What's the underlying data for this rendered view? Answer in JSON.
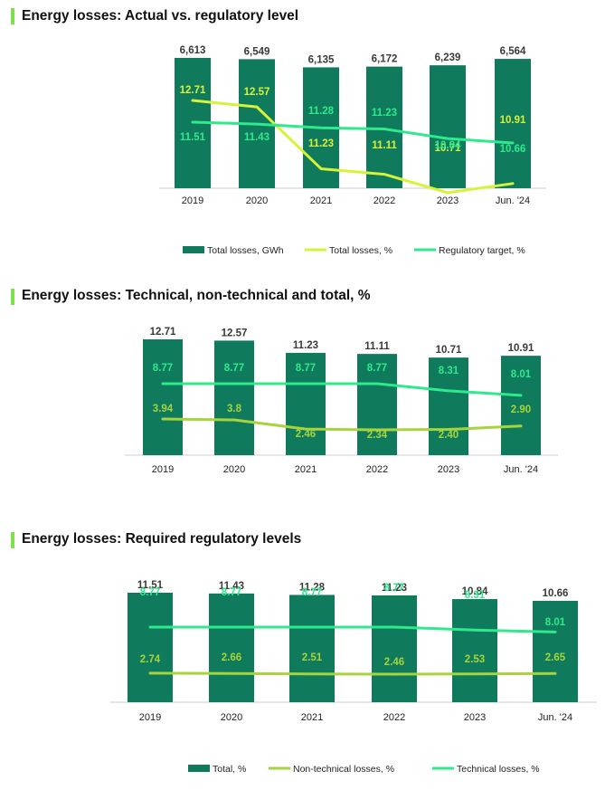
{
  "colors": {
    "bar": "#0f7a5c",
    "lime": "#d8f23a",
    "mint": "#2eea8c",
    "olive": "#a6d43c",
    "title_accent": "#7ee04a"
  },
  "chart_data": [
    {
      "type": "bar",
      "title": "Energy losses: Actual vs. regulatory level",
      "categories": [
        "2019",
        "2020",
        "2021",
        "2022",
        "2023",
        "Jun. '24"
      ],
      "series": [
        {
          "name": "Total losses, GWh",
          "kind": "bar",
          "values": [
            6613,
            6549,
            6135,
            6172,
            6239,
            6564
          ],
          "labels": [
            "6,613",
            "6,549",
            "6,135",
            "6,172",
            "6,239",
            "6,564"
          ]
        },
        {
          "name": "Total losses, %",
          "kind": "line",
          "color": "lime",
          "values": [
            12.71,
            12.57,
            11.23,
            11.11,
            10.71,
            10.91
          ],
          "labels": [
            "12.71",
            "12.57",
            "11.23",
            "11.11",
            "10.71",
            "10.91"
          ]
        },
        {
          "name": "Regulatory target, %",
          "kind": "line",
          "color": "mint",
          "values": [
            11.51,
            11.43,
            11.28,
            11.23,
            10.84,
            10.66
          ],
          "labels": [
            "11.51",
            "11.43",
            "11.28",
            "11.23",
            "10.84",
            "10.66"
          ]
        }
      ],
      "legend": "bottom"
    },
    {
      "type": "bar",
      "title": "Energy losses: Technical, non-technical and total, %",
      "categories": [
        "2019",
        "2020",
        "2021",
        "2022",
        "2023",
        "Jun. '24"
      ],
      "series": [
        {
          "name": "Total",
          "kind": "bar",
          "values": [
            12.71,
            12.57,
            11.23,
            11.11,
            10.71,
            10.91
          ],
          "labels": [
            "12.71",
            "12.57",
            "11.23",
            "11.11",
            "10.71",
            "10.91"
          ]
        },
        {
          "name": "Technical",
          "kind": "line",
          "color": "mint",
          "values": [
            8.77,
            8.77,
            8.77,
            8.77,
            8.31,
            8.01
          ],
          "labels": [
            "8.77",
            "8.77",
            "8.77",
            "8.77",
            "8.31",
            "8.01"
          ]
        },
        {
          "name": "Non-technical",
          "kind": "line",
          "color": "olive",
          "values": [
            3.94,
            3.8,
            2.46,
            2.34,
            2.4,
            2.9
          ],
          "labels": [
            "3.94",
            "3.8",
            "2.46",
            "2.34",
            "2.40",
            "2.90"
          ]
        }
      ],
      "legend": "none"
    },
    {
      "type": "bar",
      "title": "Energy losses: Required regulatory levels",
      "categories": [
        "2019",
        "2020",
        "2021",
        "2022",
        "2023",
        "Jun. '24"
      ],
      "series": [
        {
          "name": "Total, %",
          "kind": "bar",
          "values": [
            11.51,
            11.43,
            11.28,
            11.23,
            10.84,
            10.66
          ],
          "labels": [
            "11.51",
            "11.43",
            "11.28",
            "11.23",
            "10.84",
            "10.66"
          ]
        },
        {
          "name": "Non-technical losses, %",
          "kind": "line",
          "color": "olive",
          "values": [
            2.74,
            2.66,
            2.51,
            2.46,
            2.53,
            2.65
          ],
          "labels": [
            "2.74",
            "2.66",
            "2.51",
            "2.46",
            "2.53",
            "2.65"
          ]
        },
        {
          "name": "Technical losses, %",
          "kind": "line",
          "color": "mint",
          "values": [
            8.77,
            8.77,
            8.77,
            8.77,
            8.31,
            8.01
          ],
          "labels": [
            "8.77",
            "8.77",
            "8.77",
            "8.77",
            "8.31",
            "8.01"
          ]
        }
      ],
      "legend": "bottom"
    }
  ]
}
